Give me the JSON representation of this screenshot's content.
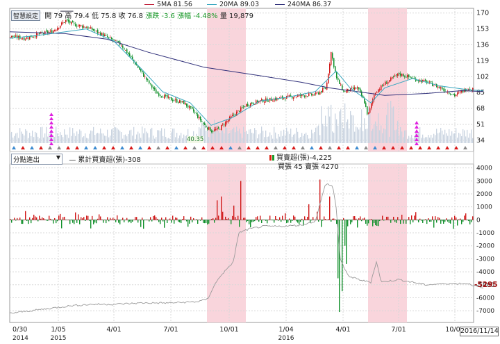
{
  "legend": {
    "ma5": {
      "label": "5MA 81.56",
      "color": "#c0203a"
    },
    "ma20": {
      "label": "20MA 89.03",
      "color": "#3aa8c0"
    },
    "ma240": {
      "label": "240MA 86.37",
      "color": "#30307a"
    }
  },
  "info": {
    "badge": "智慧設定",
    "open": "開 79",
    "high": "高 79.4",
    "low": "低 75.8",
    "close": "收 76.8",
    "change": "漲跌 -3.6",
    "pct": "漲幅 -4.48%",
    "volume": "量 19,879"
  },
  "subchart": {
    "selector": "分點進出",
    "cum_label": "累計買賣超(張)-308",
    "net_label": "買賣超(張)-4,225",
    "buy_sell": "買張 45 賣張 4270",
    "last_value": "-5295"
  },
  "annotation": "40.35",
  "date_box": "2016/11/14",
  "colors": {
    "up": "#d01818",
    "down": "#10902a",
    "highlight": "#f9d5dc",
    "grid": "#d8d8d8"
  },
  "chart_data": [
    {
      "type": "candlestick",
      "y_ticks": [
        170,
        153,
        136,
        119,
        102,
        85,
        68,
        51,
        34
      ],
      "ylim": [
        22,
        175
      ],
      "x_ticks": [
        {
          "label": "0/30",
          "sub": "2014"
        },
        {
          "label": "1/05",
          "sub": "2015"
        },
        {
          "label": "4/01",
          "sub": ""
        },
        {
          "label": "7/01",
          "sub": ""
        },
        {
          "label": "10/01",
          "sub": ""
        },
        {
          "label": "1/04",
          "sub": "2016"
        },
        {
          "label": "4/01",
          "sub": ""
        },
        {
          "label": "7/01",
          "sub": ""
        },
        {
          "label": "10/03",
          "sub": ""
        }
      ],
      "price_path": [
        [
          0,
          145
        ],
        [
          20,
          143
        ],
        [
          45,
          148
        ],
        [
          60,
          150
        ],
        [
          80,
          162
        ],
        [
          90,
          158
        ],
        [
          110,
          155
        ],
        [
          130,
          148
        ],
        [
          160,
          136
        ],
        [
          180,
          116
        ],
        [
          195,
          100
        ],
        [
          210,
          85
        ],
        [
          230,
          78
        ],
        [
          250,
          74
        ],
        [
          265,
          64
        ],
        [
          280,
          50
        ],
        [
          290,
          44
        ],
        [
          300,
          46
        ],
        [
          320,
          60
        ],
        [
          340,
          72
        ],
        [
          360,
          76
        ],
        [
          380,
          78
        ],
        [
          400,
          80
        ],
        [
          420,
          82
        ],
        [
          440,
          83
        ],
        [
          455,
          90
        ],
        [
          462,
          128
        ],
        [
          470,
          100
        ],
        [
          480,
          86
        ],
        [
          500,
          90
        ],
        [
          510,
          75
        ],
        [
          515,
          60
        ],
        [
          525,
          85
        ],
        [
          540,
          95
        ],
        [
          560,
          105
        ],
        [
          580,
          100
        ],
        [
          600,
          96
        ],
        [
          620,
          90
        ],
        [
          640,
          82
        ],
        [
          660,
          90
        ],
        [
          675,
          87
        ],
        [
          682,
          80
        ]
      ],
      "ma20_path": [
        [
          0,
          143
        ],
        [
          40,
          146
        ],
        [
          80,
          150
        ],
        [
          110,
          153
        ],
        [
          150,
          140
        ],
        [
          190,
          110
        ],
        [
          220,
          86
        ],
        [
          260,
          74
        ],
        [
          290,
          50
        ],
        [
          320,
          58
        ],
        [
          360,
          76
        ],
        [
          400,
          80
        ],
        [
          440,
          86
        ],
        [
          470,
          108
        ],
        [
          490,
          90
        ],
        [
          520,
          74
        ],
        [
          540,
          90
        ],
        [
          580,
          100
        ],
        [
          620,
          92
        ],
        [
          660,
          88
        ],
        [
          682,
          87
        ]
      ],
      "ma240_path": [
        [
          0,
          150
        ],
        [
          80,
          148
        ],
        [
          140,
          142
        ],
        [
          200,
          128
        ],
        [
          280,
          112
        ],
        [
          360,
          103
        ],
        [
          420,
          96
        ],
        [
          460,
          90
        ],
        [
          500,
          86
        ],
        [
          540,
          82
        ],
        [
          600,
          84
        ],
        [
          650,
          87
        ],
        [
          682,
          86
        ]
      ],
      "shaded_x_ranges": [
        [
          284,
          340
        ],
        [
          516,
          572
        ]
      ]
    },
    {
      "type": "bar+line",
      "y_ticks": [
        4000,
        3000,
        2000,
        1000,
        0,
        -1000,
        -2000,
        -3000,
        -4000,
        -5000,
        -6000,
        -7000
      ],
      "ylim": [
        -7900,
        4300
      ],
      "net_bar_spikes": [
        [
          298,
          1500
        ],
        [
          304,
          1800
        ],
        [
          322,
          1100
        ],
        [
          332,
          3000
        ],
        [
          430,
          1200
        ],
        [
          446,
          3100
        ],
        [
          455,
          3000
        ],
        [
          460,
          1800
        ],
        [
          472,
          -4500
        ],
        [
          474,
          -7100
        ],
        [
          478,
          -5500
        ],
        [
          482,
          -2000
        ],
        [
          484,
          -3400
        ],
        [
          531,
          -1000
        ],
        [
          610,
          -600
        ]
      ],
      "cumulative_path": [
        [
          0,
          -7200
        ],
        [
          30,
          -7000
        ],
        [
          60,
          -6800
        ],
        [
          90,
          -6600
        ],
        [
          120,
          -6500
        ],
        [
          150,
          -6500
        ],
        [
          190,
          -6400
        ],
        [
          230,
          -6400
        ],
        [
          270,
          -6300
        ],
        [
          285,
          -6100
        ],
        [
          295,
          -5000
        ],
        [
          305,
          -4200
        ],
        [
          315,
          -3700
        ],
        [
          322,
          -3200
        ],
        [
          330,
          -1000
        ],
        [
          345,
          -700
        ],
        [
          365,
          -500
        ],
        [
          390,
          -500
        ],
        [
          420,
          -400
        ],
        [
          440,
          -100
        ],
        [
          455,
          2800
        ],
        [
          465,
          2600
        ],
        [
          470,
          1000
        ],
        [
          476,
          -3000
        ],
        [
          482,
          -3800
        ],
        [
          490,
          -4400
        ],
        [
          510,
          -4700
        ],
        [
          520,
          -4800
        ],
        [
          528,
          -3200
        ],
        [
          535,
          -4800
        ],
        [
          560,
          -4600
        ],
        [
          600,
          -5000
        ],
        [
          630,
          -4900
        ],
        [
          660,
          -4900
        ],
        [
          682,
          -5300
        ]
      ]
    }
  ]
}
